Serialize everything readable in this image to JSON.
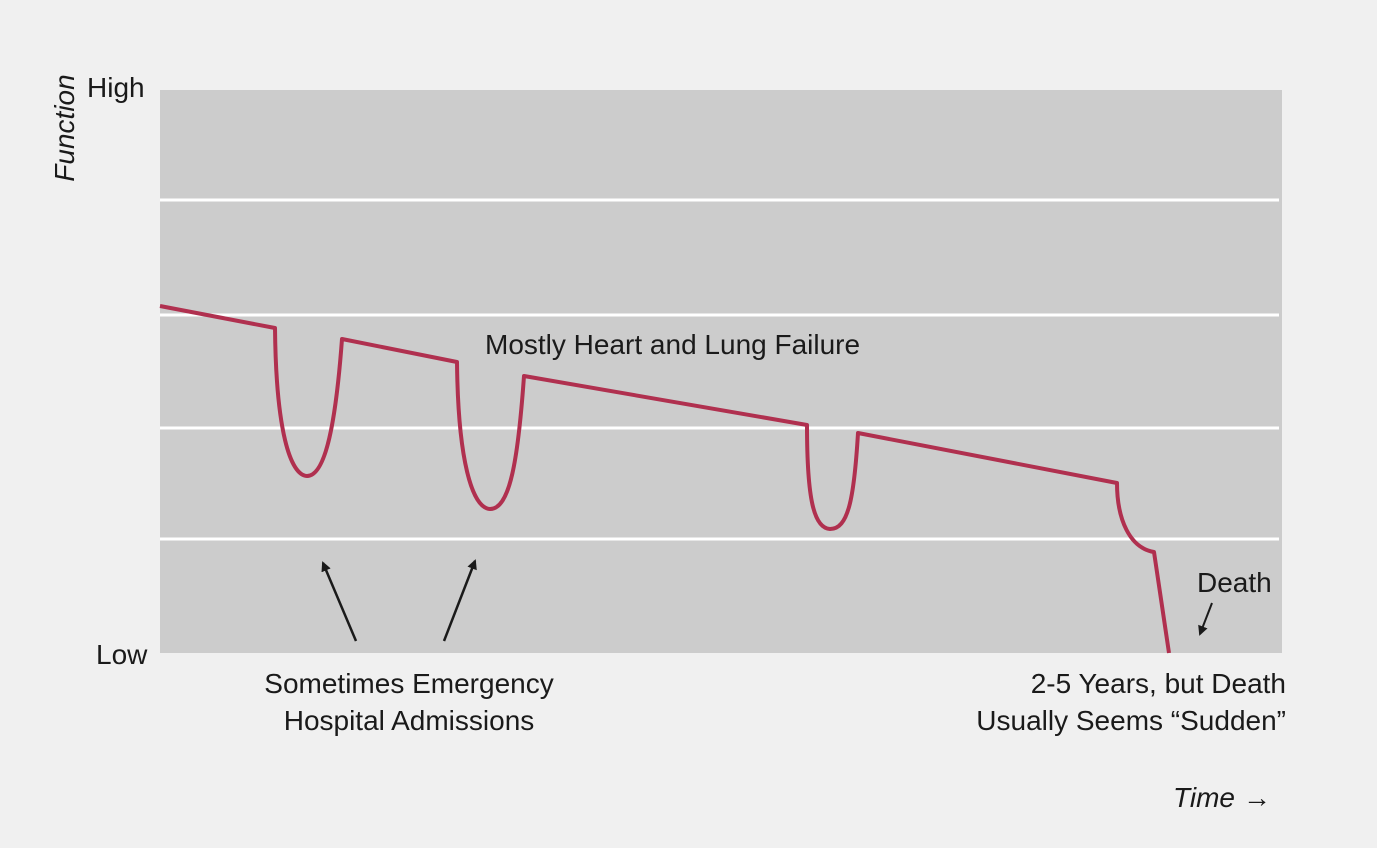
{
  "diagram": {
    "y_axis_label": "Function",
    "y_high_label": "High",
    "y_low_label": "Low",
    "x_axis_label": "Time",
    "x_axis_arrow": "→",
    "curve_label": "Mostly Heart and Lung Failure",
    "admissions_caption_line1": "Sometimes Emergency",
    "admissions_caption_line2": "Hospital Admissions",
    "duration_caption_line1": "2-5 Years, but Death",
    "duration_caption_line2": "Usually Seems “Sudden”",
    "death_label": "Death",
    "colors": {
      "plot_background": "#cccccc",
      "page_background": "#f0f0f0",
      "curve": "#b0304f",
      "gridline": "#ffffff",
      "text": "#1a1a1a"
    }
  }
}
